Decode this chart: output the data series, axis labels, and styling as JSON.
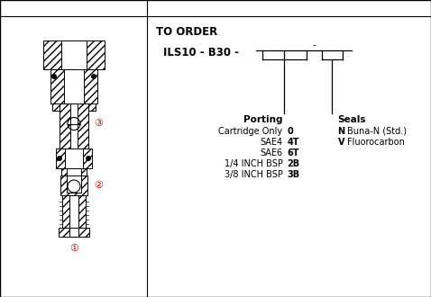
{
  "bg_color": "#ffffff",
  "border_color": "#000000",
  "title": "TO ORDER",
  "model_prefix": "ILS10 - B30 -",
  "porting_label": "Porting",
  "seals_label": "Seals",
  "porting_entries": [
    [
      "Cartridge Only",
      "0"
    ],
    [
      "SAE4",
      "4T"
    ],
    [
      "SAE6",
      "6T"
    ],
    [
      "1/4 INCH BSP",
      "2B"
    ],
    [
      "3/8 INCH BSP",
      "3B"
    ]
  ],
  "seals_entries": [
    [
      "N",
      "Buna-N (Std.)"
    ],
    [
      "V",
      "Fluorocarbon"
    ]
  ],
  "annotation_color": "#cc0000"
}
